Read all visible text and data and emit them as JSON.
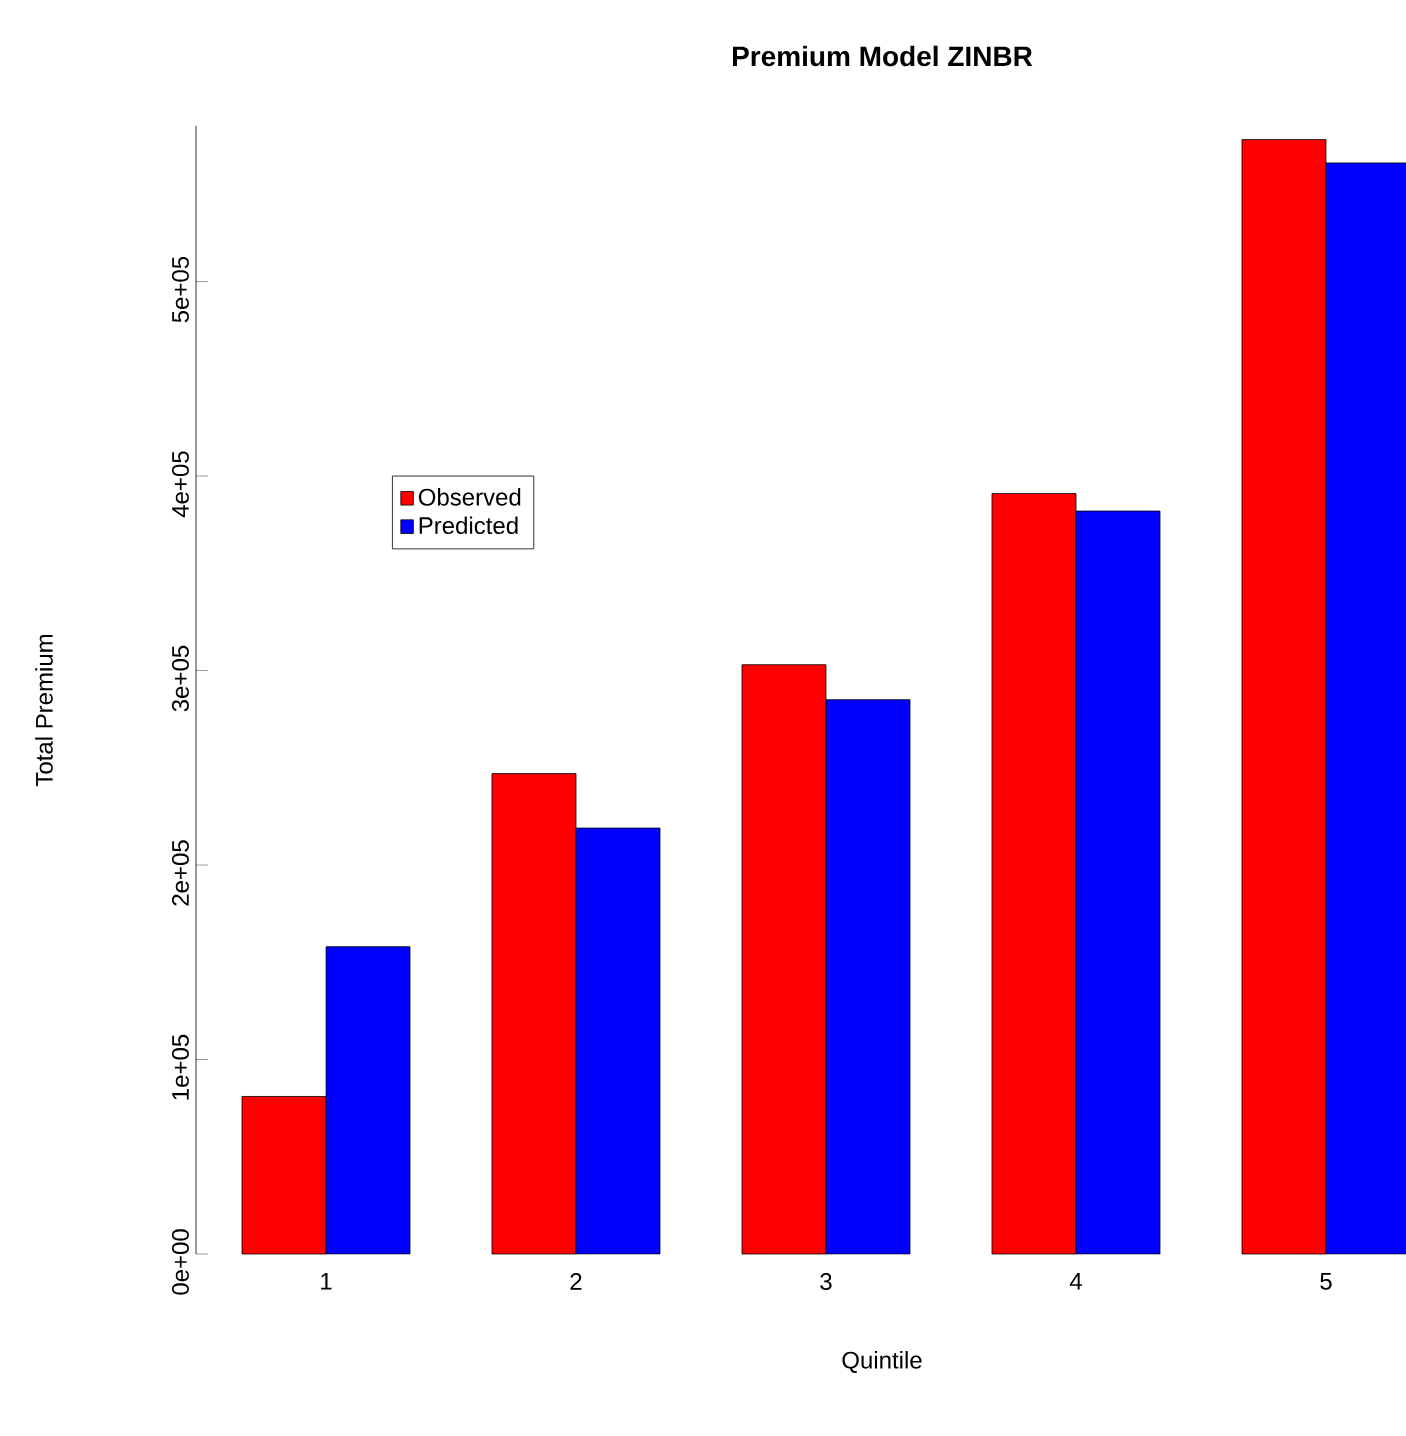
{
  "chart_data": {
    "type": "bar",
    "title": "Premium Model ZINBR",
    "xlabel": "Quintile",
    "ylabel": "Total Premium",
    "categories": [
      "1",
      "2",
      "3",
      "4",
      "5"
    ],
    "series": [
      {
        "name": "Observed",
        "color": "#ff0000",
        "values": [
          81000,
          247000,
          303000,
          391000,
          573000
        ]
      },
      {
        "name": "Predicted",
        "color": "#0000ff",
        "values": [
          158000,
          219000,
          285000,
          382000,
          561000
        ]
      }
    ],
    "ylim": [
      0,
      580000
    ],
    "yticks": [
      {
        "value": 0,
        "label": "0e+00"
      },
      {
        "value": 100000,
        "label": "1e+05"
      },
      {
        "value": 200000,
        "label": "2e+05"
      },
      {
        "value": 300000,
        "label": "3e+05"
      },
      {
        "value": 400000,
        "label": "4e+05"
      },
      {
        "value": 500000,
        "label": "5e+05"
      }
    ],
    "legend": "left"
  }
}
